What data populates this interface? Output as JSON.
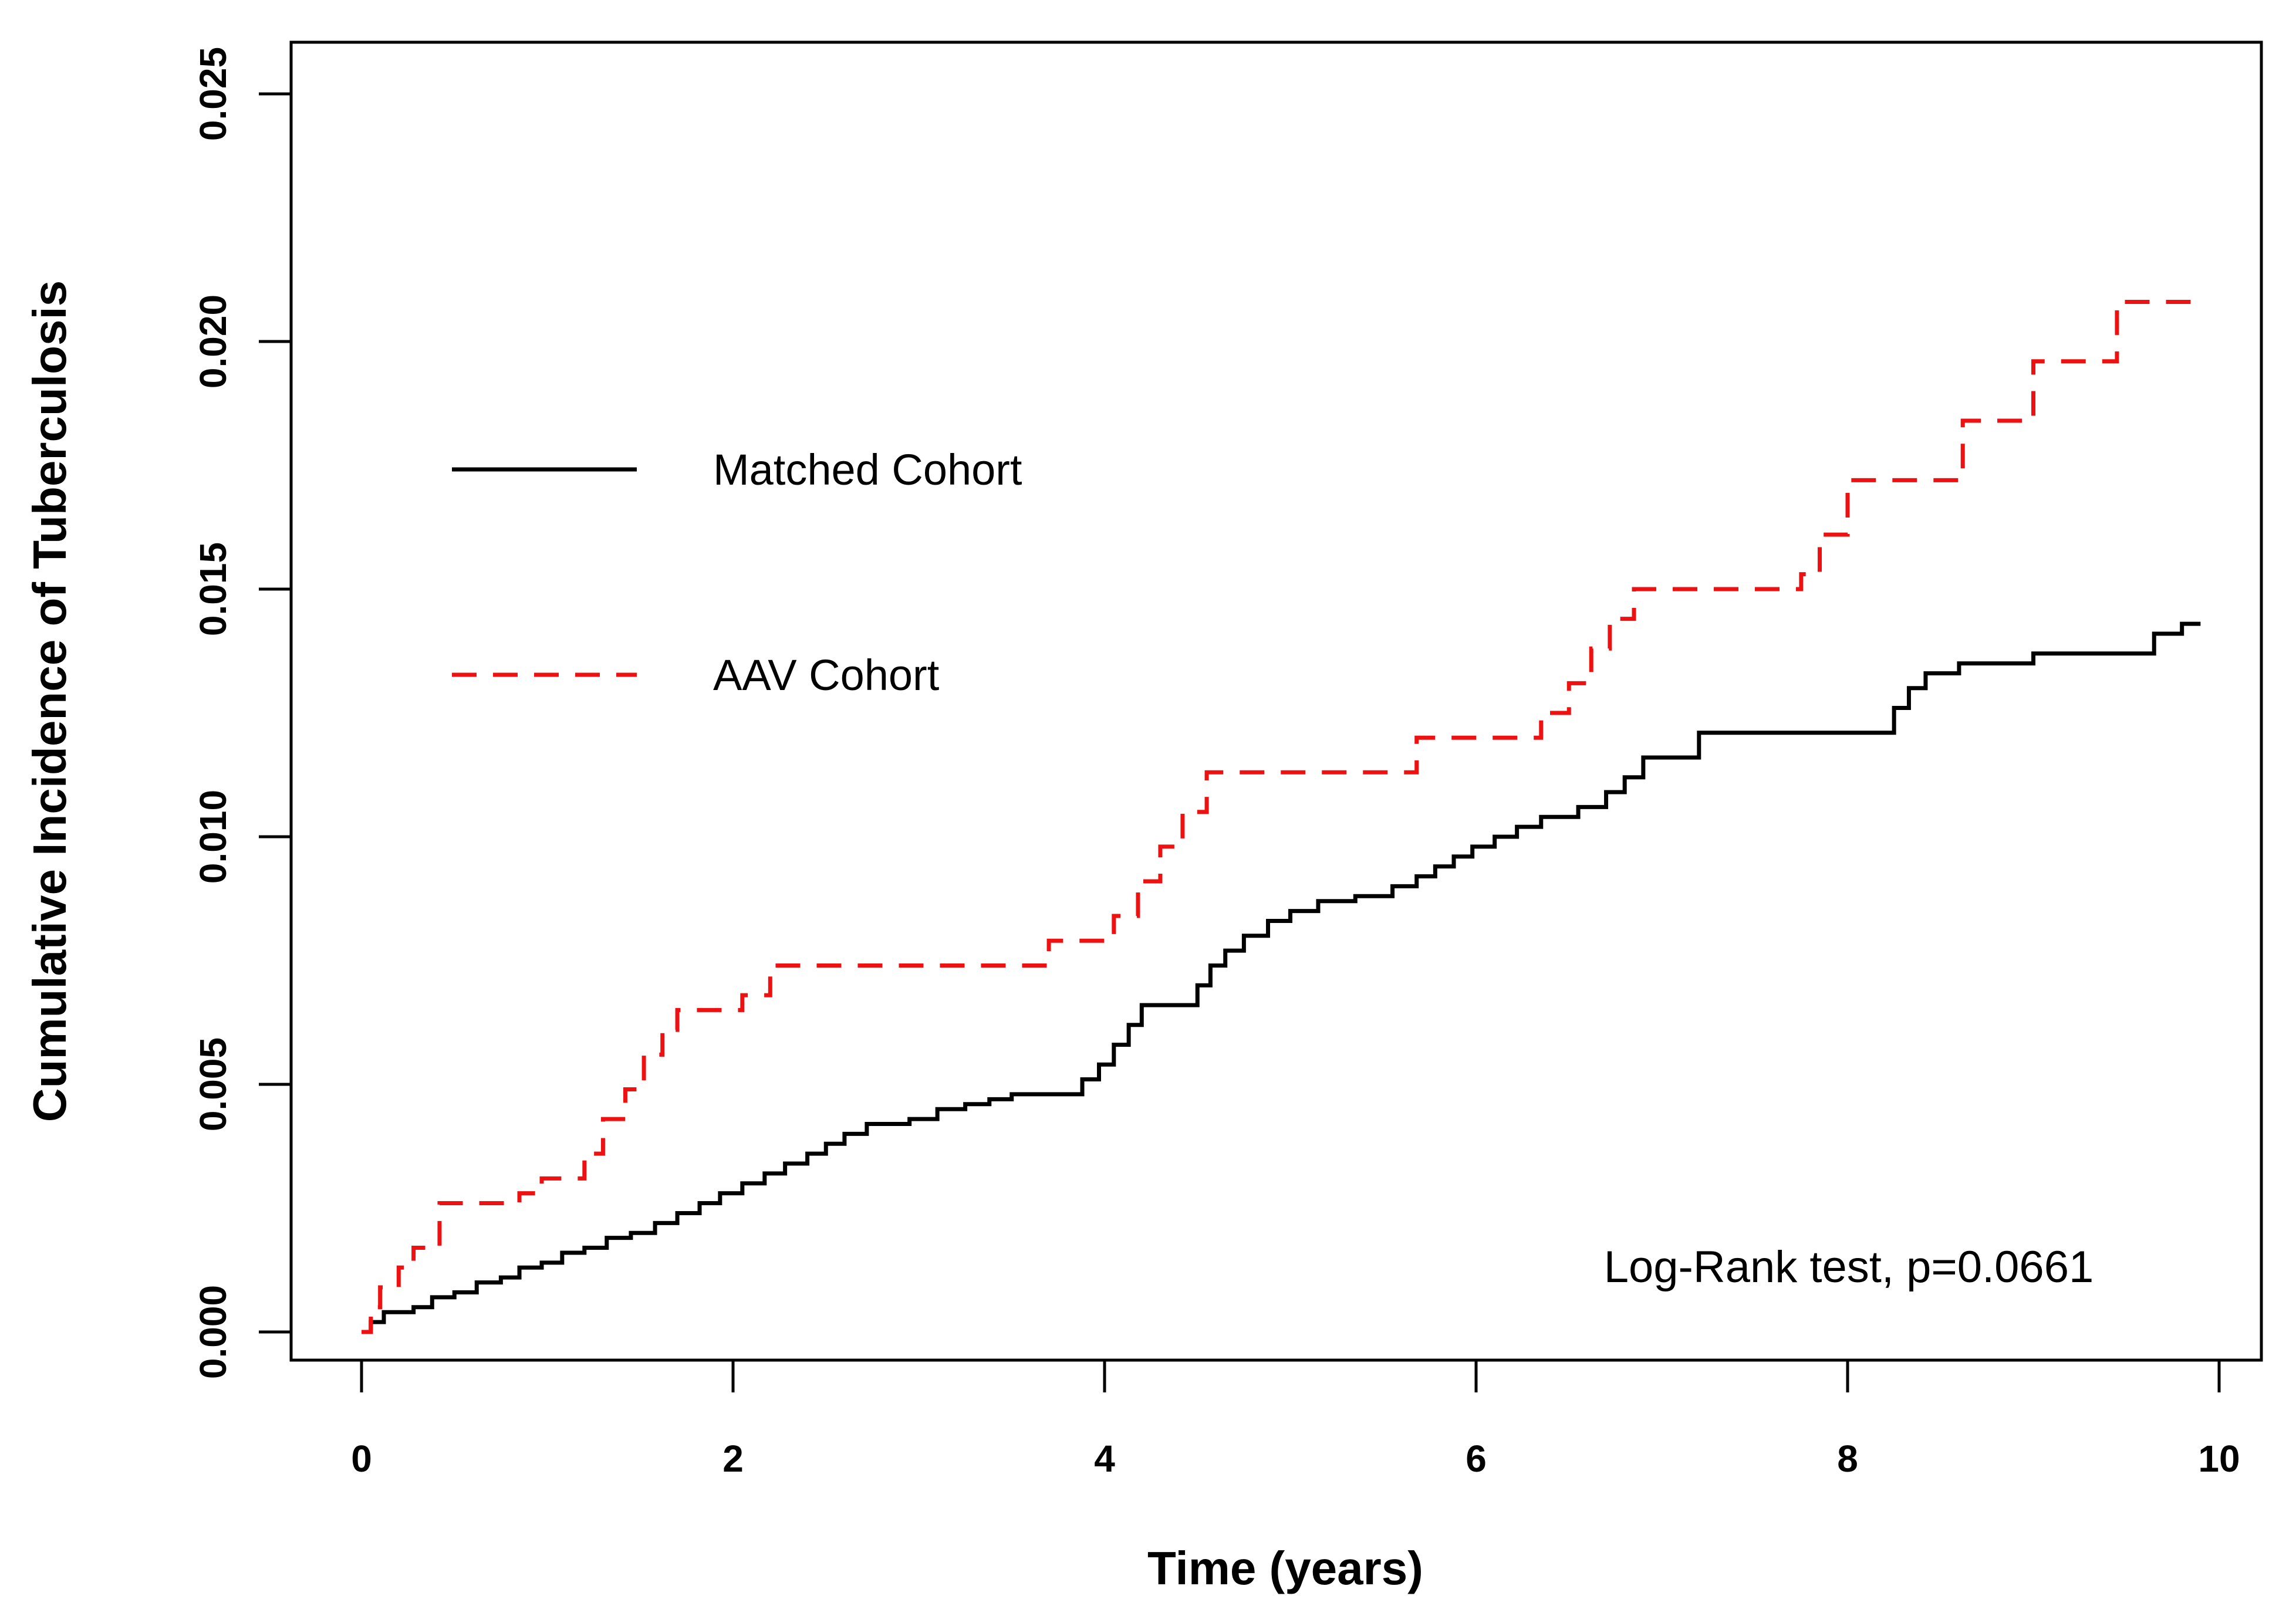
{
  "chart_data": {
    "type": "line",
    "subtype": "step-cumulative-incidence",
    "title": "",
    "xlabel": "Time (years)",
    "ylabel": "Cumulative Incidence of Tuberculosis",
    "annotation": "Log-Rank test, p=0.0661",
    "xlim": [
      0,
      10
    ],
    "ylim": [
      0,
      0.025
    ],
    "grid": false,
    "legend_position": "inside-top-left",
    "xtick_values": [
      0,
      2,
      4,
      6,
      8,
      10
    ],
    "xtick_labels": [
      "0",
      "2",
      "4",
      "6",
      "8",
      "10"
    ],
    "ytick_values": [
      0.0,
      0.005,
      0.01,
      0.015,
      0.02,
      0.025
    ],
    "ytick_labels": [
      "0.000",
      "0.005",
      "0.010",
      "0.015",
      "0.020",
      "0.025"
    ],
    "colors": {
      "matched_cohort": "#000000",
      "aav_cohort": "#ee1111",
      "axis": "#000000",
      "background": "#ffffff"
    },
    "series": [
      {
        "name": "Matched Cohort",
        "color": "#000000",
        "line_style": "solid",
        "end_time": 9.9,
        "points": [
          [
            0,
            0
          ],
          [
            0.05,
            0.0002
          ],
          [
            0.12,
            0.0004
          ],
          [
            0.28,
            0.0005
          ],
          [
            0.38,
            0.0007
          ],
          [
            0.5,
            0.0008
          ],
          [
            0.62,
            0.001
          ],
          [
            0.75,
            0.0011
          ],
          [
            0.85,
            0.0013
          ],
          [
            0.97,
            0.0014
          ],
          [
            1.08,
            0.0016
          ],
          [
            1.2,
            0.0017
          ],
          [
            1.32,
            0.0019
          ],
          [
            1.45,
            0.002
          ],
          [
            1.58,
            0.0022
          ],
          [
            1.7,
            0.0024
          ],
          [
            1.82,
            0.0026
          ],
          [
            1.93,
            0.0028
          ],
          [
            2.05,
            0.003
          ],
          [
            2.17,
            0.0032
          ],
          [
            2.28,
            0.0034
          ],
          [
            2.4,
            0.0036
          ],
          [
            2.5,
            0.0038
          ],
          [
            2.6,
            0.004
          ],
          [
            2.72,
            0.0042
          ],
          [
            2.95,
            0.0043
          ],
          [
            3.1,
            0.0045
          ],
          [
            3.25,
            0.0046
          ],
          [
            3.38,
            0.0047
          ],
          [
            3.5,
            0.0048
          ],
          [
            3.88,
            0.0051
          ],
          [
            3.97,
            0.0054
          ],
          [
            4.05,
            0.0058
          ],
          [
            4.13,
            0.0062
          ],
          [
            4.2,
            0.0066
          ],
          [
            4.5,
            0.007
          ],
          [
            4.57,
            0.0074
          ],
          [
            4.65,
            0.0077
          ],
          [
            4.75,
            0.008
          ],
          [
            4.88,
            0.0083
          ],
          [
            5.0,
            0.0085
          ],
          [
            5.15,
            0.0087
          ],
          [
            5.35,
            0.0088
          ],
          [
            5.55,
            0.009
          ],
          [
            5.68,
            0.0092
          ],
          [
            5.78,
            0.0094
          ],
          [
            5.88,
            0.0096
          ],
          [
            5.98,
            0.0098
          ],
          [
            6.1,
            0.01
          ],
          [
            6.22,
            0.0102
          ],
          [
            6.35,
            0.0104
          ],
          [
            6.55,
            0.0106
          ],
          [
            6.7,
            0.0109
          ],
          [
            6.8,
            0.0112
          ],
          [
            6.9,
            0.0116
          ],
          [
            7.2,
            0.0121
          ],
          [
            8.25,
            0.0126
          ],
          [
            8.33,
            0.013
          ],
          [
            8.42,
            0.0133
          ],
          [
            8.6,
            0.0135
          ],
          [
            9.0,
            0.0137
          ],
          [
            9.65,
            0.0141
          ],
          [
            9.8,
            0.0143
          ]
        ]
      },
      {
        "name": "AAV Cohort",
        "color": "#ee1111",
        "line_style": "dashed",
        "end_time": 9.9,
        "points": [
          [
            0,
            0
          ],
          [
            0.05,
            0.0005
          ],
          [
            0.1,
            0.0009
          ],
          [
            0.2,
            0.0013
          ],
          [
            0.28,
            0.0017
          ],
          [
            0.42,
            0.0026
          ],
          [
            0.85,
            0.0028
          ],
          [
            0.97,
            0.0031
          ],
          [
            1.2,
            0.0036
          ],
          [
            1.3,
            0.0043
          ],
          [
            1.42,
            0.0049
          ],
          [
            1.52,
            0.0056
          ],
          [
            1.62,
            0.0061
          ],
          [
            1.7,
            0.0065
          ],
          [
            2.05,
            0.0068
          ],
          [
            2.2,
            0.0074
          ],
          [
            3.7,
            0.0079
          ],
          [
            4.05,
            0.0084
          ],
          [
            4.18,
            0.0091
          ],
          [
            4.3,
            0.0098
          ],
          [
            4.42,
            0.0105
          ],
          [
            4.55,
            0.0113
          ],
          [
            5.68,
            0.012
          ],
          [
            6.35,
            0.0125
          ],
          [
            6.5,
            0.0131
          ],
          [
            6.62,
            0.0138
          ],
          [
            6.72,
            0.0144
          ],
          [
            6.85,
            0.015
          ],
          [
            7.75,
            0.0153
          ],
          [
            7.85,
            0.0161
          ],
          [
            8.0,
            0.0172
          ],
          [
            8.62,
            0.0184
          ],
          [
            9.0,
            0.0196
          ],
          [
            9.45,
            0.0208
          ]
        ]
      }
    ]
  }
}
